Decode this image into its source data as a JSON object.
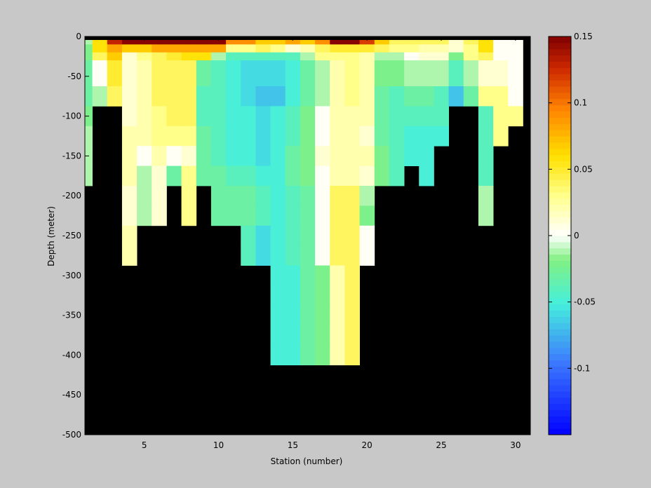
{
  "chart_data": {
    "type": "heatmap",
    "title": "",
    "xlabel": "Station (number)",
    "ylabel": "Depth (meter)",
    "x_ticks": [
      5,
      10,
      15,
      20,
      25,
      30
    ],
    "y_ticks": [
      0,
      -50,
      -100,
      -150,
      -200,
      -250,
      -300,
      -350,
      -400,
      -450,
      -500
    ],
    "xlim": [
      1,
      31
    ],
    "ylim": [
      -500,
      0
    ],
    "clim": [
      -0.15,
      0.15
    ],
    "colorbar_ticks": [
      0.15,
      0.1,
      0.05,
      0,
      -0.05,
      -0.1
    ],
    "colorbar_tick_labels": [
      "0.15",
      "0.1",
      "0.05",
      "0",
      "-0.05",
      "-0.1"
    ],
    "colormap": "jet-with-white-center",
    "nodata_color": "#000000",
    "stations": [
      1,
      2,
      3,
      4,
      5,
      6,
      7,
      8,
      9,
      10,
      11,
      12,
      13,
      14,
      15,
      16,
      17,
      18,
      19,
      20,
      21,
      22,
      23,
      24,
      25,
      26,
      27,
      28,
      29,
      30
    ],
    "depths": [
      -5,
      -15,
      -25,
      -50,
      -75,
      -100,
      -125,
      -150,
      -175,
      -200,
      -225,
      -250,
      -275,
      -300,
      -325,
      -350,
      -375,
      -400
    ],
    "depth_bottoms": [
      -10,
      -20,
      -30,
      -62.5,
      -87.5,
      -112.5,
      -137.5,
      -162.5,
      -187.5,
      -212.5,
      -237.5,
      -262.5,
      -287.5,
      -312.5,
      -337.5,
      -362.5,
      -387.5,
      -412.5
    ],
    "values": [
      [
        -0.01,
        0.06,
        0.13,
        0.15,
        0.15,
        0.15,
        0.15,
        0.15,
        0.15,
        0.15,
        0.09,
        0.09,
        0.07,
        0.07,
        0.08,
        0.07,
        0.09,
        0.15,
        0.15,
        0.12,
        0.07,
        0.04,
        0.04,
        0.04,
        0.04,
        0.01,
        0.04,
        0.06,
        0.0,
        0.0
      ],
      [
        -0.02,
        0.06,
        0.08,
        0.07,
        0.07,
        0.08,
        0.08,
        0.08,
        0.08,
        0.08,
        0.03,
        0.03,
        0.04,
        0.03,
        0.01,
        0.02,
        0.04,
        0.05,
        0.05,
        0.05,
        0.04,
        0.03,
        0.03,
        0.02,
        0.02,
        0.01,
        0.03,
        0.06,
        0.0,
        0.0
      ],
      [
        -0.02,
        0.04,
        0.07,
        0.01,
        0.03,
        0.04,
        0.05,
        0.06,
        0.06,
        -0.01,
        -0.04,
        -0.04,
        -0.04,
        -0.04,
        -0.04,
        -0.01,
        0.03,
        0.03,
        0.03,
        0.02,
        -0.01,
        -0.01,
        0.0,
        0.01,
        0.01,
        -0.02,
        0.03,
        0.04,
        0.0,
        0.0
      ],
      [
        -0.03,
        0.0,
        0.05,
        0.01,
        0.02,
        0.04,
        0.04,
        0.04,
        -0.03,
        -0.04,
        -0.05,
        -0.06,
        -0.06,
        -0.06,
        -0.05,
        -0.03,
        -0.01,
        0.02,
        0.03,
        0.02,
        -0.02,
        -0.02,
        -0.01,
        -0.01,
        -0.01,
        -0.04,
        -0.01,
        0.01,
        0.01,
        0.0
      ],
      [
        -0.03,
        -0.01,
        0.04,
        0.01,
        0.02,
        0.04,
        0.04,
        0.04,
        -0.04,
        -0.04,
        -0.05,
        -0.06,
        -0.07,
        -0.07,
        -0.05,
        -0.03,
        -0.01,
        0.02,
        0.03,
        0.02,
        -0.03,
        -0.04,
        -0.03,
        -0.03,
        -0.04,
        -0.07,
        -0.03,
        0.03,
        0.03,
        0.0
      ],
      [
        -0.02,
        null,
        null,
        0.01,
        0.02,
        0.03,
        0.04,
        0.04,
        -0.04,
        -0.04,
        -0.05,
        -0.05,
        -0.06,
        -0.05,
        -0.04,
        -0.02,
        0.0,
        0.02,
        0.02,
        0.02,
        -0.03,
        -0.04,
        -0.04,
        -0.04,
        -0.04,
        null,
        null,
        -0.04,
        0.03,
        0.03
      ],
      [
        -0.01,
        null,
        null,
        0.02,
        0.02,
        0.03,
        0.03,
        0.03,
        -0.03,
        -0.04,
        -0.05,
        -0.05,
        -0.06,
        -0.05,
        -0.04,
        -0.02,
        0.0,
        0.02,
        0.02,
        0.01,
        -0.03,
        -0.04,
        -0.05,
        -0.05,
        -0.05,
        null,
        null,
        -0.04,
        0.03,
        null
      ],
      [
        -0.01,
        null,
        null,
        0.02,
        0.0,
        0.02,
        0.0,
        0.01,
        -0.03,
        -0.04,
        -0.05,
        -0.05,
        -0.06,
        -0.05,
        -0.03,
        -0.02,
        0.01,
        0.02,
        0.02,
        0.02,
        -0.02,
        -0.04,
        -0.05,
        -0.05,
        null,
        null,
        null,
        -0.04,
        null,
        null
      ],
      [
        -0.01,
        null,
        null,
        0.02,
        -0.01,
        0.01,
        -0.03,
        0.03,
        -0.03,
        -0.03,
        -0.04,
        -0.04,
        -0.05,
        -0.05,
        -0.03,
        -0.02,
        0.0,
        0.02,
        0.02,
        0.01,
        -0.02,
        -0.04,
        null,
        -0.05,
        null,
        null,
        null,
        -0.04,
        null,
        null
      ],
      [
        null,
        null,
        null,
        0.01,
        -0.01,
        0.01,
        null,
        0.03,
        null,
        -0.03,
        -0.03,
        -0.03,
        -0.04,
        -0.05,
        -0.04,
        -0.03,
        0.0,
        0.04,
        0.04,
        -0.01,
        null,
        null,
        null,
        null,
        null,
        null,
        null,
        -0.01,
        null,
        null
      ],
      [
        null,
        null,
        null,
        0.01,
        -0.01,
        0.01,
        null,
        0.03,
        null,
        -0.03,
        -0.03,
        -0.03,
        -0.04,
        -0.05,
        -0.04,
        -0.03,
        0.0,
        0.04,
        0.04,
        -0.02,
        null,
        null,
        null,
        null,
        null,
        null,
        null,
        -0.01,
        null,
        null
      ],
      [
        null,
        null,
        null,
        0.02,
        null,
        null,
        null,
        null,
        null,
        null,
        null,
        -0.04,
        -0.06,
        -0.05,
        -0.04,
        -0.03,
        0.0,
        0.04,
        0.04,
        0.0,
        null,
        null,
        null,
        null,
        null,
        null,
        null,
        null,
        null,
        null
      ],
      [
        null,
        null,
        null,
        0.02,
        null,
        null,
        null,
        null,
        null,
        null,
        null,
        -0.04,
        -0.06,
        -0.05,
        -0.04,
        -0.03,
        0.0,
        0.04,
        0.04,
        0.0,
        null,
        null,
        null,
        null,
        null,
        null,
        null,
        null,
        null,
        null
      ],
      [
        null,
        null,
        null,
        null,
        null,
        null,
        null,
        null,
        null,
        null,
        null,
        null,
        null,
        -0.05,
        -0.05,
        -0.03,
        -0.02,
        0.02,
        0.04,
        null,
        null,
        null,
        null,
        null,
        null,
        null,
        null,
        null,
        null,
        null
      ],
      [
        null,
        null,
        null,
        null,
        null,
        null,
        null,
        null,
        null,
        null,
        null,
        null,
        null,
        -0.05,
        -0.05,
        -0.03,
        -0.02,
        0.02,
        0.04,
        null,
        null,
        null,
        null,
        null,
        null,
        null,
        null,
        null,
        null,
        null
      ],
      [
        null,
        null,
        null,
        null,
        null,
        null,
        null,
        null,
        null,
        null,
        null,
        null,
        null,
        -0.05,
        -0.05,
        -0.03,
        -0.02,
        0.02,
        0.04,
        null,
        null,
        null,
        null,
        null,
        null,
        null,
        null,
        null,
        null,
        null
      ],
      [
        null,
        null,
        null,
        null,
        null,
        null,
        null,
        null,
        null,
        null,
        null,
        null,
        null,
        -0.05,
        -0.05,
        -0.03,
        -0.02,
        0.02,
        0.04,
        null,
        null,
        null,
        null,
        null,
        null,
        null,
        null,
        null,
        null,
        null
      ],
      [
        null,
        null,
        null,
        null,
        null,
        null,
        null,
        null,
        null,
        null,
        null,
        null,
        null,
        -0.05,
        -0.05,
        -0.03,
        -0.02,
        0.02,
        0.04,
        null,
        null,
        null,
        null,
        null,
        null,
        null,
        null,
        null,
        null,
        null
      ]
    ]
  }
}
